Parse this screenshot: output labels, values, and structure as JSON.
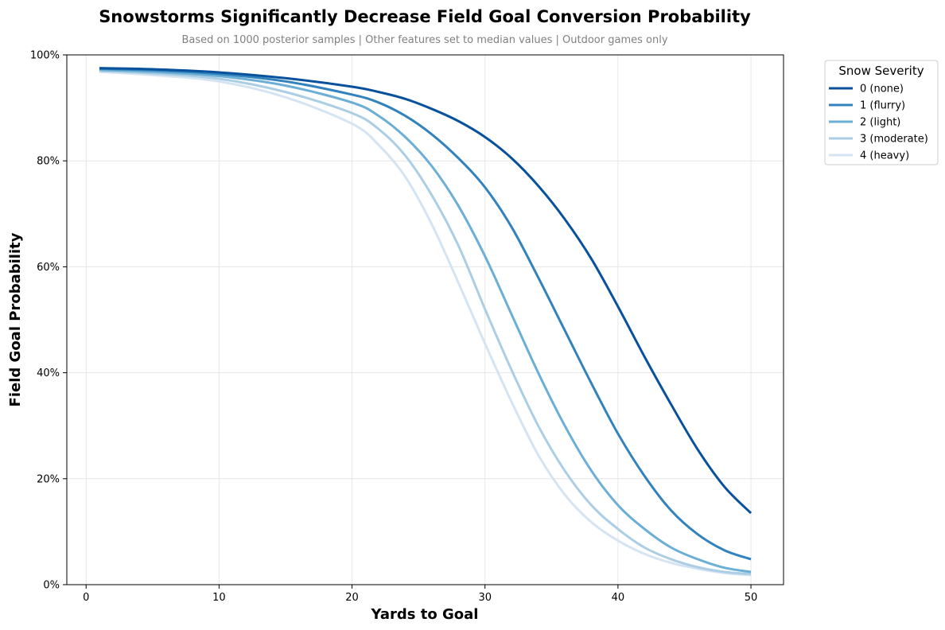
{
  "chart_data": {
    "type": "line",
    "title": "Snowstorms Significantly Decrease Field Goal Conversion Probability",
    "subtitle": "Based on 1000 posterior samples | Other features set to median values | Outdoor games only",
    "xlabel": "Yards to Goal",
    "ylabel": "Field Goal Probability",
    "xlim": [
      -1.45,
      52.45
    ],
    "ylim": [
      0,
      100
    ],
    "x_ticks": [
      0,
      10,
      20,
      30,
      40,
      50
    ],
    "y_ticks": [
      0,
      20,
      40,
      60,
      80,
      100
    ],
    "x_tick_labels": [
      "0",
      "10",
      "20",
      "30",
      "40",
      "50"
    ],
    "y_tick_labels": [
      "0%",
      "20%",
      "40%",
      "60%",
      "80%",
      "100%"
    ],
    "grid": true,
    "legend": {
      "title": "Snow Severity",
      "placement": "outside-top-right"
    },
    "x": [
      1,
      5,
      10,
      15,
      20,
      22,
      24,
      26,
      28,
      30,
      32,
      34,
      36,
      38,
      40,
      42,
      44,
      46,
      48,
      50
    ],
    "series": [
      {
        "name": "0 (none)",
        "color": "#08519c",
        "values": [
          97.5,
          97.3,
          96.7,
          95.6,
          94.0,
          93.0,
          91.7,
          89.8,
          87.5,
          84.5,
          80.5,
          75.3,
          69.0,
          61.5,
          52.5,
          43.0,
          34.0,
          25.5,
          18.5,
          13.5
        ]
      },
      {
        "name": "1 (flurry)",
        "color": "#3182bd",
        "values": [
          97.4,
          97.1,
          96.4,
          95.0,
          92.5,
          91.0,
          88.5,
          85.0,
          80.5,
          75.0,
          67.5,
          58.0,
          48.0,
          38.0,
          28.5,
          20.5,
          14.0,
          9.5,
          6.5,
          4.8
        ]
      },
      {
        "name": "2 (light)",
        "color": "#6baed6",
        "values": [
          97.2,
          96.8,
          96.0,
          94.2,
          91.0,
          88.5,
          84.5,
          79.0,
          71.5,
          62.0,
          51.0,
          40.0,
          30.0,
          21.5,
          15.0,
          10.5,
          7.0,
          4.8,
          3.2,
          2.4
        ]
      },
      {
        "name": "3 (moderate)",
        "color": "#abcee4",
        "values": [
          97.0,
          96.5,
          95.5,
          93.0,
          89.0,
          86.0,
          81.0,
          73.5,
          64.0,
          52.0,
          40.5,
          30.0,
          21.5,
          15.0,
          10.5,
          7.0,
          4.8,
          3.3,
          2.4,
          2.0
        ]
      },
      {
        "name": "4 (heavy)",
        "color": "#d4e4f2",
        "values": [
          96.8,
          96.2,
          95.0,
          92.0,
          87.0,
          83.0,
          77.0,
          68.0,
          57.0,
          45.5,
          34.5,
          24.5,
          17.0,
          11.8,
          8.3,
          5.8,
          4.1,
          3.0,
          2.2,
          1.8
        ]
      }
    ]
  }
}
